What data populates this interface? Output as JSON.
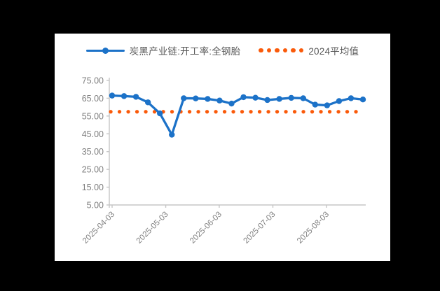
{
  "panel": {
    "background": "#ffffff",
    "page_background": "#000000"
  },
  "legend": {
    "series_label": "炭黑产业链:开工率:全钢胎",
    "average_label": "2024平均值"
  },
  "chart_data": {
    "type": "line",
    "title": "",
    "xlabel": "",
    "ylabel": "",
    "series": [
      {
        "name": "炭黑产业链:开工率:全钢胎",
        "color": "#1C72C8",
        "marker": "circle",
        "values": [
          66.5,
          66.2,
          65.8,
          62.7,
          56.5,
          44.5,
          65.0,
          64.9,
          64.6,
          63.7,
          62.0,
          65.6,
          65.3,
          64.0,
          64.6,
          65.2,
          65.0,
          61.4,
          61.0,
          63.4,
          65.0,
          64.3
        ]
      }
    ],
    "average_line": {
      "name": "2024平均值",
      "value": 57.4,
      "color": "#FA5A0A",
      "style": "dotted"
    },
    "x_tick_labels": [
      "2025-04-03",
      "2025-05-03",
      "2025-06-03",
      "2025-07-03",
      "2025-08-03"
    ],
    "x_tick_positions": [
      0,
      4.49,
      8.97,
      13.46,
      17.95
    ],
    "x_labels_rotation_deg": 45,
    "y_ticks": [
      5,
      15,
      25,
      35,
      45,
      55,
      65,
      75
    ],
    "ylim": [
      5,
      75
    ],
    "y_tick_decimals": 2,
    "grid": false,
    "legend_position": "top"
  },
  "style_colors": {
    "axis_line": "#C6C6C6",
    "tick_label": "#7F7F7F",
    "legend_text": "#575757"
  }
}
